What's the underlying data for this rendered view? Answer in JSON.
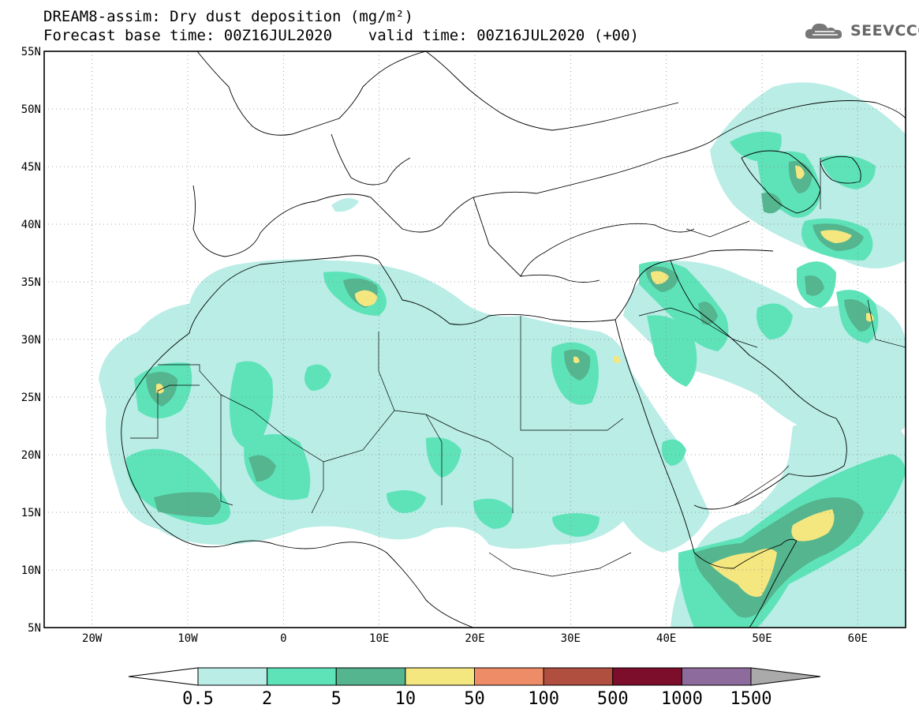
{
  "header": {
    "title_line1": "DREAM8-assim: Dry dust deposition (mg/m²)",
    "title_line2": "Forecast base time: 00Z16JUL2020    valid time: 00Z16JUL2020 (+00)",
    "logo_text": "SEEVCCC"
  },
  "map": {
    "lon_ticks": [
      "20W",
      "10W",
      "0",
      "10E",
      "20E",
      "30E",
      "40E",
      "50E",
      "60E"
    ],
    "lat_ticks": [
      "55N",
      "50N",
      "45N",
      "40N",
      "35N",
      "30N",
      "25N",
      "20N",
      "15N",
      "10N",
      "5N"
    ],
    "lon_range": [
      -25,
      65
    ],
    "lat_range": [
      5,
      55
    ],
    "gridlines": "dotted",
    "colorbar": {
      "labels": [
        "0.5",
        "2",
        "5",
        "10",
        "50",
        "100",
        "500",
        "1000",
        "1500"
      ],
      "colors": [
        "#ffffff",
        "#b9ede6",
        "#5ee3b9",
        "#54b58f",
        "#f5e77f",
        "#ee8c67",
        "#b04e40",
        "#7c0e2b",
        "#8d6b9c",
        "#aaaaaa"
      ]
    }
  }
}
